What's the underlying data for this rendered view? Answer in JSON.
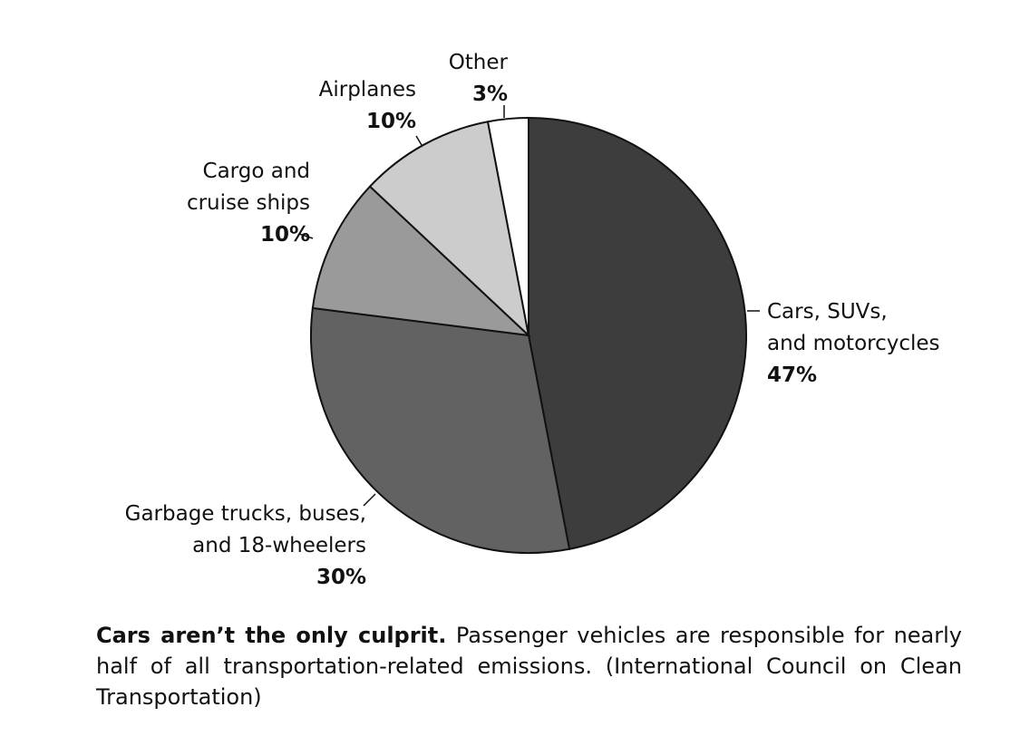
{
  "chart_data": {
    "type": "pie",
    "start_angle_deg": 0,
    "direction": "clockwise",
    "slices": [
      {
        "label_lines": [
          "Cars, SUVs,",
          "and motorcycles"
        ],
        "pct_label": "47%",
        "value": 47,
        "color": "#3d3d3d"
      },
      {
        "label_lines": [
          "Garbage trucks, buses,",
          "and 18-wheelers"
        ],
        "pct_label": "30%",
        "value": 30,
        "color": "#626262"
      },
      {
        "label_lines": [
          "Cargo and",
          "cruise ships"
        ],
        "pct_label": "10%",
        "value": 10,
        "color": "#9a9a9a"
      },
      {
        "label_lines": [
          "Airplanes"
        ],
        "pct_label": "10%",
        "value": 10,
        "color": "#cbcccb"
      },
      {
        "label_lines": [
          "Other"
        ],
        "pct_label": "3%",
        "value": 3,
        "color": "#ffffff"
      }
    ]
  },
  "caption": {
    "bold": "Cars aren’t the only culprit.",
    "text": " Passenger vehicles are responsible for nearly half of all transportation-related emissions. (International Council on Clean Transportation)"
  }
}
